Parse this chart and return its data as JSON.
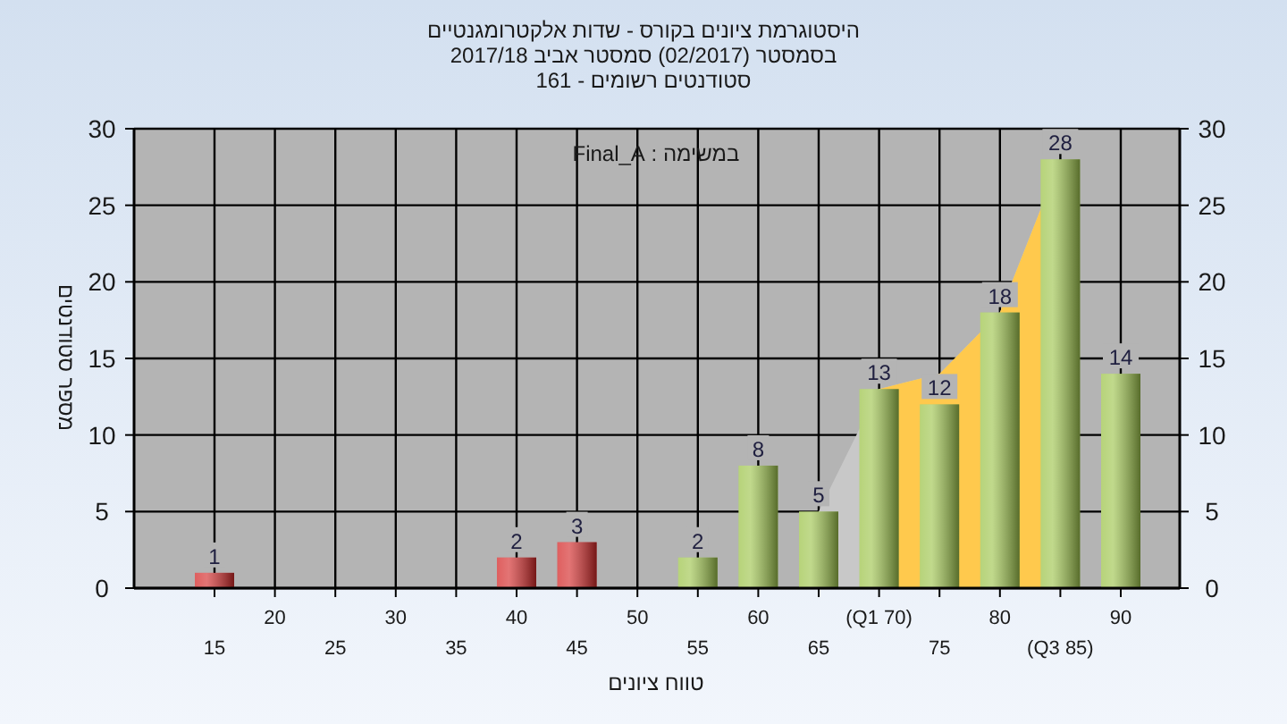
{
  "chart_data": {
    "type": "bar",
    "title": "היסטוגרמת ציונים בקורס - שדות אלקטרומגנטיים",
    "subtitle": "בסמסטר (02/2017) סמסטר אביב 2017/18",
    "annotations": [
      "סטודנטים רשומים - 161",
      "במשימה : Final_A"
    ],
    "xlabel": "טווח ציונים",
    "ylabel": "מספר סטודנטים",
    "categories": [
      "15",
      "20",
      "25",
      "30",
      "35",
      "40",
      "45",
      "50",
      "55",
      "60",
      "65",
      "(Q1 70)",
      "75",
      "80",
      "(Q3 85)",
      "90"
    ],
    "series": [
      {
        "type": "area",
        "color": "#c8c8c8",
        "values": [
          null,
          null,
          null,
          null,
          null,
          null,
          null,
          null,
          null,
          null,
          5,
          13,
          14,
          18,
          28,
          null
        ]
      },
      {
        "type": "area",
        "color": "#ffc94d",
        "values": [
          null,
          null,
          null,
          null,
          null,
          null,
          null,
          null,
          null,
          null,
          null,
          13,
          14,
          18,
          28,
          null
        ]
      },
      {
        "colors": [
          "#d42a2a",
          "#d42a2a",
          "#d42a2a",
          "#d42a2a",
          "#d42a2a",
          "#d42a2a",
          "#d42a2a",
          "#d42a2a",
          "#9fc54e",
          "#9fc54e",
          "#9fc54e",
          "#9fc54e",
          "#9fc54e",
          "#9fc54e",
          "#9fc54e",
          "#9fc54e"
        ],
        "values": [
          1,
          0,
          0,
          0,
          0,
          2,
          3,
          0,
          2,
          8,
          5,
          13,
          12,
          18,
          28,
          14
        ],
        "value_labels": [
          "1",
          null,
          null,
          null,
          null,
          "2",
          "3",
          null,
          "2",
          "8",
          "5",
          "13",
          "12",
          "18",
          "28",
          "14"
        ]
      }
    ],
    "ylim": [
      0,
      30
    ],
    "yticks": [
      0,
      5,
      10,
      15,
      20,
      25,
      30
    ],
    "y2lim": [
      0,
      30
    ],
    "y2ticks": [
      0,
      5,
      10,
      15,
      20,
      25,
      30
    ],
    "grid": true
  }
}
